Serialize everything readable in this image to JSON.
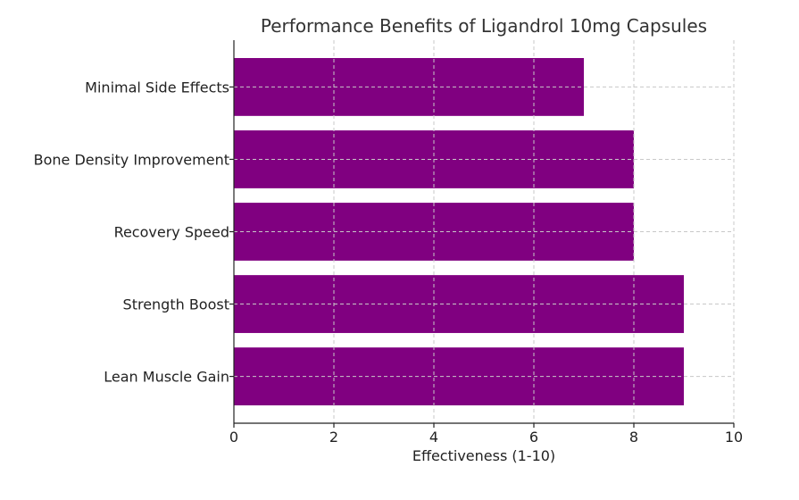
{
  "chart_data": {
    "type": "bar",
    "orientation": "horizontal",
    "title": "Performance Benefits of Ligandrol 10mg Capsules",
    "xlabel": "Effectiveness (1-10)",
    "ylabel": "",
    "xlim": [
      0,
      10
    ],
    "xticks": [
      0,
      2,
      4,
      6,
      8,
      10
    ],
    "categories": [
      "Lean Muscle Gain",
      "Strength Boost",
      "Recovery Speed",
      "Bone Density Improvement",
      "Minimal Side Effects"
    ],
    "values": [
      9,
      9,
      8,
      8,
      7
    ],
    "bar_color": "#800080",
    "grid": true
  }
}
